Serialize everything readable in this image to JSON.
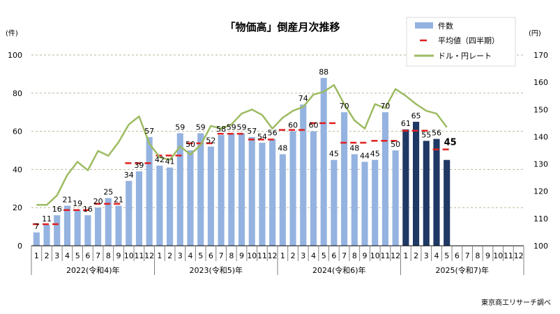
{
  "chart_data": {
    "type": "bar",
    "title": "「物価高」倒産月次推移",
    "source": "東京商工リサーチ調べ",
    "y_left_unit": "(件)",
    "y_right_unit": "(円)",
    "ylim": [
      0,
      100
    ],
    "y_ticks": [
      0,
      20,
      40,
      60,
      80,
      100
    ],
    "y2lim": [
      100,
      170
    ],
    "y2_ticks": [
      100,
      110,
      120,
      130,
      140,
      150,
      160,
      170
    ],
    "grid": true,
    "legend_position": "top-right",
    "years": [
      {
        "label": "2022(令和4)年",
        "months": [
          "1",
          "2",
          "3",
          "4",
          "5",
          "6",
          "7",
          "8",
          "9",
          "10",
          "11",
          "12"
        ]
      },
      {
        "label": "2023(令和5)年",
        "months": [
          "1",
          "2",
          "3",
          "4",
          "5",
          "6",
          "7",
          "8",
          "9",
          "10",
          "11",
          "12"
        ]
      },
      {
        "label": "2024(令和6)年",
        "months": [
          "1",
          "2",
          "3",
          "4",
          "5",
          "6",
          "7",
          "8",
          "9",
          "10",
          "11",
          "12"
        ]
      },
      {
        "label": "2025(令和7)年",
        "months": [
          "1",
          "2",
          "3",
          "4",
          "5",
          "6",
          "7",
          "8",
          "9",
          "10",
          "11",
          "12"
        ]
      }
    ],
    "series": [
      {
        "name": "件数",
        "kind": "bar",
        "axis": "left",
        "color_past": "#95b3e0",
        "color_current": "#1f3864",
        "values": [
          7,
          11,
          16,
          21,
          19,
          16,
          20,
          25,
          21,
          34,
          39,
          57,
          42,
          41,
          59,
          50,
          59,
          52,
          58,
          59,
          59,
          57,
          54,
          56,
          48,
          60,
          74,
          60,
          88,
          45,
          70,
          48,
          44,
          45,
          70,
          50,
          61,
          65,
          55,
          56,
          45
        ],
        "labels": [
          "7",
          "11",
          "16",
          "21",
          "19",
          "16",
          "20",
          "25",
          "21",
          "34",
          "39",
          "57",
          "42",
          "41",
          "59",
          "50",
          "59",
          "52",
          "58",
          "59",
          "59",
          "57",
          "54",
          "56",
          "48",
          "60",
          "74",
          "60",
          "88",
          "45",
          "70",
          "48",
          "44",
          "45",
          "70",
          "50",
          "61",
          "65",
          "55",
          "56",
          "45"
        ]
      },
      {
        "name": "平均値（四半期）",
        "kind": "step",
        "axis": "left",
        "color": "#e02020",
        "segments": [
          {
            "from": 0,
            "to": 2,
            "value": 11.3
          },
          {
            "from": 3,
            "to": 5,
            "value": 18.7
          },
          {
            "from": 6,
            "to": 8,
            "value": 22
          },
          {
            "from": 9,
            "to": 11,
            "value": 43.3
          },
          {
            "from": 12,
            "to": 14,
            "value": 47.3
          },
          {
            "from": 15,
            "to": 17,
            "value": 53.7
          },
          {
            "from": 18,
            "to": 20,
            "value": 58.7
          },
          {
            "from": 21,
            "to": 23,
            "value": 55.7
          },
          {
            "from": 24,
            "to": 26,
            "value": 60.7
          },
          {
            "from": 27,
            "to": 29,
            "value": 64.3
          },
          {
            "from": 30,
            "to": 32,
            "value": 54
          },
          {
            "from": 33,
            "to": 35,
            "value": 55
          },
          {
            "from": 36,
            "to": 38,
            "value": 60.3
          },
          {
            "from": 39,
            "to": 40,
            "value": 50.5
          }
        ]
      },
      {
        "name": "ドル・円レート",
        "kind": "line",
        "axis": "right",
        "color": "#9dbb61",
        "values": [
          115,
          115,
          118.5,
          126,
          130.8,
          127.7,
          134.8,
          133,
          138,
          144.5,
          147.5,
          137.5,
          132.5,
          131.5,
          136.5,
          133.5,
          137,
          144,
          143,
          144.5,
          148.5,
          150,
          148,
          143,
          147,
          149.5,
          151,
          155.5,
          156.5,
          159,
          152,
          146,
          143,
          152,
          150.5,
          157.5,
          155,
          152,
          149.5,
          148.5,
          143.5
        ]
      }
    ],
    "annotation": {
      "index": 40,
      "text": "45"
    }
  }
}
